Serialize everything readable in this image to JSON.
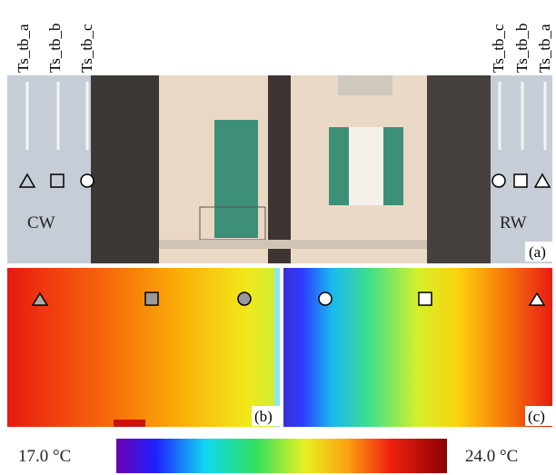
{
  "photo": {
    "labels_left": [
      "Ts_tb_a",
      "Ts_tb_b",
      "Ts_tb_c"
    ],
    "labels_right": [
      "Ts_tb_c",
      "Ts_tb_b",
      "Ts_tb_a"
    ],
    "left_wall": "CW",
    "right_wall": "RW",
    "panel": "(a)"
  },
  "thermal": {
    "left_panel": "(b)",
    "right_panel": "(c)"
  },
  "colorbar": {
    "min_label": "17.0 °C",
    "max_label": "24.0 °C"
  }
}
